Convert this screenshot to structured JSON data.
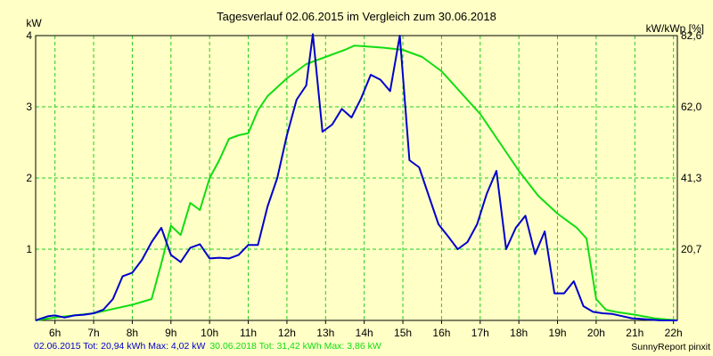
{
  "chart_data": {
    "type": "line",
    "title": "Tagesverlauf 02.06.2015 im Vergleich zum 30.06.2018",
    "ylabel_left": "kW",
    "ylabel_right": "kW/kWp [%]",
    "ylim": [
      0,
      4
    ],
    "xlim": [
      5.5,
      22.1
    ],
    "grid": true,
    "y_ticks_left": [
      "1",
      "2",
      "3",
      "4"
    ],
    "y_ticks_right": [
      "20,7",
      "41,3",
      "62,0",
      "82,6"
    ],
    "x_ticks": [
      "6h",
      "7h",
      "8h",
      "9h",
      "10h",
      "11h",
      "12h",
      "13h",
      "14h",
      "15h",
      "16h",
      "17h",
      "18h",
      "19h",
      "20h",
      "21h",
      "22h"
    ],
    "series": [
      {
        "name": "02.06.2015",
        "color": "#0000cc",
        "summary": "02.06.2015 Tot: 20,94 kWh Max: 4,02 kW",
        "x": [
          5.5,
          5.83,
          6.0,
          6.25,
          6.5,
          6.75,
          7.0,
          7.25,
          7.5,
          7.75,
          8.0,
          8.25,
          8.5,
          8.75,
          9.0,
          9.25,
          9.5,
          9.75,
          10.0,
          10.25,
          10.5,
          10.75,
          11.0,
          11.25,
          11.5,
          11.75,
          12.0,
          12.25,
          12.5,
          12.67,
          12.92,
          13.17,
          13.42,
          13.67,
          13.92,
          14.17,
          14.42,
          14.67,
          14.92,
          15.17,
          15.42,
          15.67,
          15.92,
          16.17,
          16.42,
          16.67,
          16.92,
          17.17,
          17.42,
          17.67,
          17.92,
          18.17,
          18.42,
          18.67,
          18.92,
          19.17,
          19.42,
          19.67,
          19.92,
          20.17,
          20.42,
          20.67,
          20.92,
          21.17,
          21.42,
          21.67,
          22.1
        ],
        "y": [
          0.0,
          0.06,
          0.07,
          0.04,
          0.07,
          0.08,
          0.1,
          0.15,
          0.3,
          0.62,
          0.67,
          0.85,
          1.1,
          1.3,
          0.92,
          0.82,
          1.02,
          1.07,
          0.87,
          0.88,
          0.87,
          0.92,
          1.06,
          1.06,
          1.6,
          2.0,
          2.6,
          3.1,
          3.3,
          4.02,
          2.65,
          2.75,
          2.97,
          2.85,
          3.12,
          3.45,
          3.38,
          3.22,
          4.0,
          2.25,
          2.15,
          1.75,
          1.35,
          1.18,
          1.0,
          1.1,
          1.35,
          1.78,
          2.1,
          1.0,
          1.3,
          1.47,
          0.93,
          1.25,
          0.38,
          0.38,
          0.55,
          0.2,
          0.12,
          0.1,
          0.09,
          0.06,
          0.03,
          0.02,
          0.01,
          0.0,
          0.0
        ]
      },
      {
        "name": "30.06.2018",
        "color": "#11dd11",
        "summary": "30.06.2018 Tot: 31,42 kWh Max: 3,86 kW",
        "x": [
          5.5,
          6.0,
          6.5,
          7.0,
          7.5,
          8.0,
          8.5,
          8.75,
          9.0,
          9.25,
          9.5,
          9.75,
          10.0,
          10.25,
          10.5,
          10.75,
          11.0,
          11.25,
          11.5,
          12.0,
          12.5,
          13.0,
          13.5,
          13.75,
          14.0,
          14.5,
          15.0,
          15.5,
          16.0,
          16.5,
          17.0,
          17.5,
          18.0,
          18.5,
          19.0,
          19.5,
          19.75,
          20.0,
          20.25,
          20.5,
          21.0,
          21.5,
          22.1
        ],
        "y": [
          0.0,
          0.04,
          0.07,
          0.1,
          0.16,
          0.22,
          0.3,
          0.8,
          1.33,
          1.2,
          1.65,
          1.55,
          2.0,
          2.25,
          2.55,
          2.6,
          2.63,
          2.95,
          3.15,
          3.4,
          3.6,
          3.7,
          3.8,
          3.86,
          3.85,
          3.83,
          3.8,
          3.7,
          3.5,
          3.2,
          2.9,
          2.5,
          2.1,
          1.75,
          1.5,
          1.3,
          1.15,
          0.3,
          0.15,
          0.12,
          0.08,
          0.03,
          0.0
        ]
      }
    ]
  },
  "footer": {
    "credit": "SunnyReport pinxit"
  }
}
